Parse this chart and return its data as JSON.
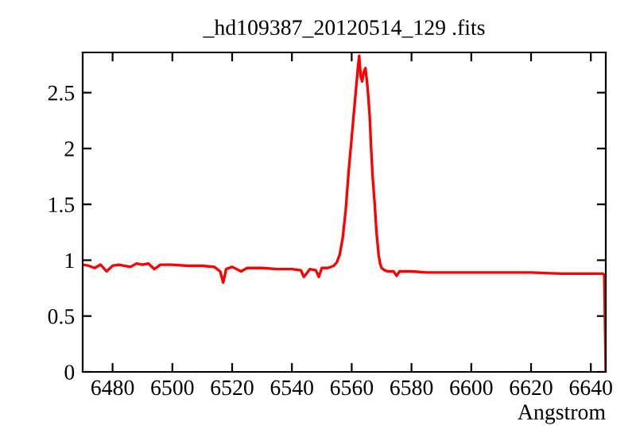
{
  "chart_data": {
    "type": "line",
    "title": "_hd109387_20120514_129 .fits",
    "xlabel": "Angstrom",
    "x": [
      6470,
      6472,
      6474,
      6476,
      6478,
      6480,
      6482,
      6486,
      6488,
      6490,
      6492,
      6494,
      6496,
      6500,
      6505,
      6510,
      6514,
      6516,
      6517,
      6518,
      6520,
      6523,
      6525,
      6530,
      6535,
      6540,
      6543,
      6544,
      6546,
      6548,
      6549,
      6550,
      6552,
      6554,
      6555,
      6556,
      6557,
      6558,
      6559,
      6560,
      6561,
      6562,
      6562.5,
      6563,
      6563.5,
      6564,
      6564.6,
      6565.3,
      6566,
      6566.5,
      6567,
      6567.7,
      6568.3,
      6569,
      6569.5,
      6570,
      6571,
      6572,
      6574,
      6575,
      6576,
      6578,
      6580,
      6585,
      6590,
      6600,
      6610,
      6620,
      6630,
      6640,
      6644,
      6644.5,
      6645
    ],
    "series": [
      {
        "color": "#ff0000",
        "values": [
          0.96,
          0.95,
          0.93,
          0.96,
          0.9,
          0.95,
          0.96,
          0.94,
          0.97,
          0.96,
          0.97,
          0.92,
          0.96,
          0.96,
          0.95,
          0.95,
          0.94,
          0.9,
          0.8,
          0.92,
          0.94,
          0.9,
          0.93,
          0.93,
          0.92,
          0.92,
          0.91,
          0.85,
          0.92,
          0.91,
          0.85,
          0.93,
          0.93,
          0.95,
          0.98,
          1.05,
          1.2,
          1.45,
          1.8,
          2.1,
          2.4,
          2.7,
          2.83,
          2.65,
          2.6,
          2.68,
          2.72,
          2.55,
          2.3,
          2.0,
          1.75,
          1.5,
          1.25,
          1.05,
          0.97,
          0.93,
          0.91,
          0.9,
          0.9,
          0.86,
          0.9,
          0.9,
          0.9,
          0.89,
          0.89,
          0.89,
          0.89,
          0.89,
          0.88,
          0.88,
          0.88,
          0.87,
          0
        ]
      }
    ],
    "xlim": [
      6470,
      6645
    ],
    "xticks": [
      6480,
      6500,
      6520,
      6540,
      6560,
      6580,
      6600,
      6620,
      6640
    ],
    "ylim": [
      0,
      2.86
    ],
    "yticks": [
      0,
      0.5,
      1,
      1.5,
      2,
      2.5
    ],
    "grid": false,
    "legend": false
  }
}
